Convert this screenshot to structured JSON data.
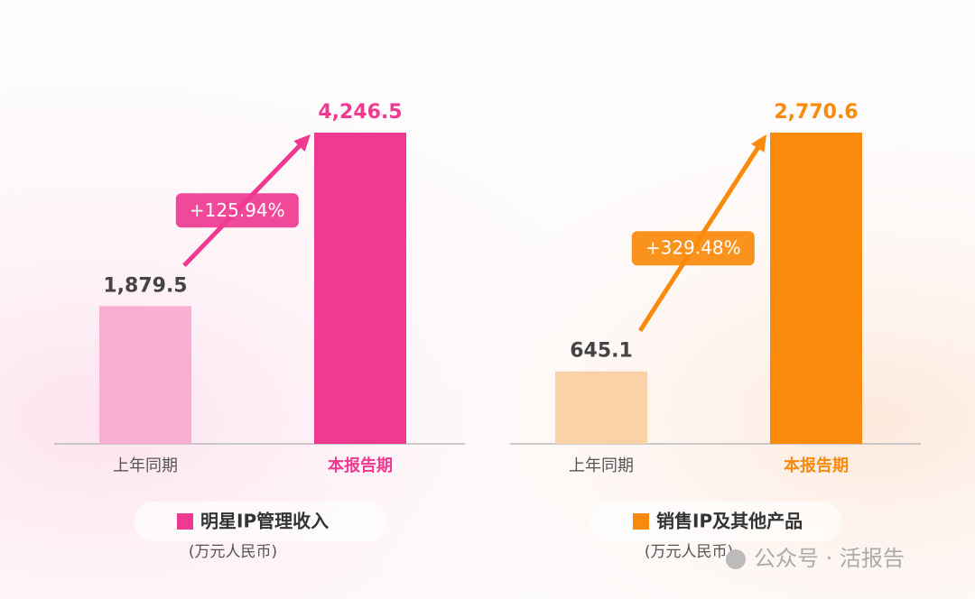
{
  "chart_data": [
    {
      "type": "bar",
      "categories": [
        "上年同期",
        "本报告期"
      ],
      "values": [
        1879.5,
        4246.5
      ],
      "value_labels": [
        "1,879.5",
        "4,246.5"
      ],
      "colors": [
        "#f8afd2",
        "#f03a91"
      ],
      "annotation": "+125.94%",
      "legend": "明星IP管理收入",
      "unit": "(万元人民币)"
    },
    {
      "type": "bar",
      "categories": [
        "上年同期",
        "本报告期"
      ],
      "values": [
        645.1,
        2770.6
      ],
      "value_labels": [
        "645.1",
        "2,770.6"
      ],
      "colors": [
        "#fbd2a8",
        "#f98a0b"
      ],
      "annotation": "+329.48%",
      "legend": "销售IP及其他产品",
      "unit": "(万元人民币)"
    }
  ],
  "watermark": "公众号 · 活报告"
}
